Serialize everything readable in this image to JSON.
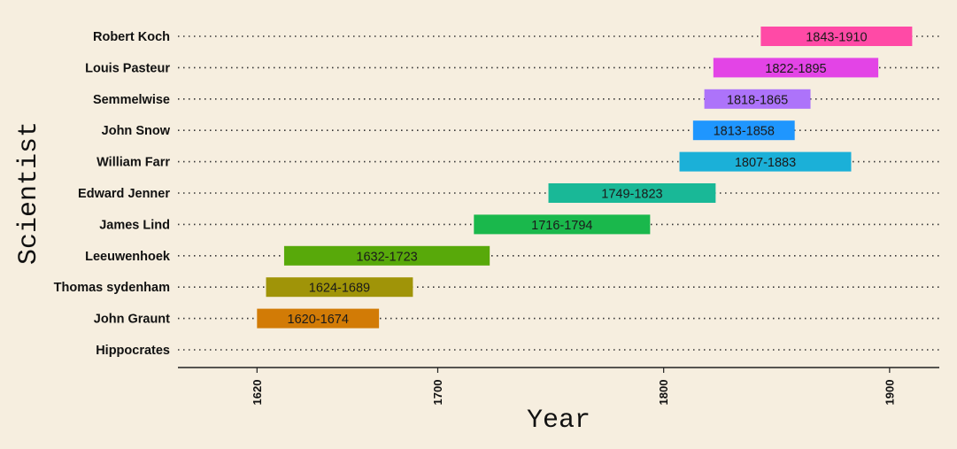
{
  "chart_data": {
    "type": "bar",
    "orientation": "horizontal-range",
    "xlabel": "Year",
    "ylabel": "Scientist",
    "xlim": [
      1585,
      1922
    ],
    "xticks": [
      1620,
      1700,
      1800,
      1900
    ],
    "grid": "horizontal dotted",
    "legend": "none",
    "categories": [
      "Robert Koch",
      "Louis Pasteur",
      "Semmelwise",
      "John Snow",
      "William Farr",
      "Edward Jenner",
      "James Lind",
      "Leeuwenhoek",
      "Thomas sydenham",
      "John Graunt",
      "Hippocrates"
    ],
    "bars": [
      {
        "name": "Robert Koch",
        "start": 1843,
        "end": 1910,
        "label": "1843-1910",
        "color": "#ff4aa6"
      },
      {
        "name": "Louis Pasteur",
        "start": 1822,
        "end": 1895,
        "label": "1822-1895",
        "color": "#e344e6"
      },
      {
        "name": "Semmelwise",
        "start": 1818,
        "end": 1865,
        "label": "1818-1865",
        "color": "#ad73fa"
      },
      {
        "name": "John Snow",
        "start": 1813,
        "end": 1858,
        "label": "1813-1858",
        "color": "#1f96fe"
      },
      {
        "name": "William Farr",
        "start": 1807,
        "end": 1883,
        "label": "1807-1883",
        "color": "#1bb0d8"
      },
      {
        "name": "Edward Jenner",
        "start": 1749,
        "end": 1823,
        "label": "1749-1823",
        "color": "#19b897"
      },
      {
        "name": "James Lind",
        "start": 1716,
        "end": 1794,
        "label": "1716-1794",
        "color": "#1ab84c"
      },
      {
        "name": "Leeuwenhoek",
        "start": 1632,
        "end": 1723,
        "label": "1632-1723",
        "color": "#58a90a"
      },
      {
        "name": "Thomas sydenham",
        "start": 1624,
        "end": 1689,
        "label": "1624-1689",
        "color": "#a09408"
      },
      {
        "name": "John Graunt",
        "start": 1620,
        "end": 1674,
        "label": "1620-1674",
        "color": "#d27b06"
      },
      {
        "name": "Hippocrates",
        "start": null,
        "end": null,
        "label": "",
        "color": ""
      }
    ]
  }
}
